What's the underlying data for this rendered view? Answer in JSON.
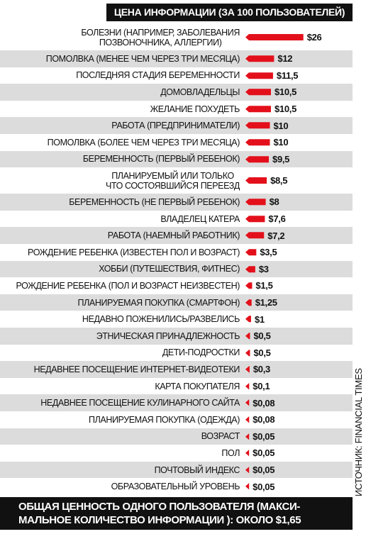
{
  "chart_data": {
    "type": "bar",
    "title": "ЦЕНА ИНФОРМАЦИИ (ЗА 100 ПОЛЬЗОВАТЕЛЕЙ)",
    "categories": [
      "БОЛЕЗНИ (НАПРИМЕР, ЗАБОЛЕВАНИЯ\nПОЗВОНОЧНИКА, АЛЛЕРГИИ)",
      "ПОМОЛВКА (МЕНЕЕ ЧЕМ ЧЕРЕЗ ТРИ МЕСЯЦА)",
      "ПОСЛЕДНЯЯ СТАДИЯ БЕРЕМЕННОСТИ",
      "ДОМОВЛАДЕЛЬЦЫ",
      "ЖЕЛАНИЕ ПОХУДЕТЬ",
      "РАБОТА (ПРЕДПРИНИМАТЕЛИ)",
      "ПОМОЛВКА (БОЛЕЕ ЧЕМ ЧЕРЕЗ ТРИ МЕСЯЦА)",
      "БЕРЕМЕННОСТЬ (ПЕРВЫЙ РЕБЕНОК)",
      "ПЛАНИРУЕМЫЙ ИЛИ ТОЛЬКО\nЧТО СОСТОЯВШИЙСЯ ПЕРЕЕЗД",
      "БЕРЕМЕННОСТЬ (НЕ ПЕРВЫЙ РЕБЕНОК)",
      "ВЛАДЕЛЕЦ КАТЕРА",
      "РАБОТА (НАЕМНЫЙ РАБОТНИК)",
      "РОЖДЕНИЕ РЕБЕНКА (ИЗВЕСТЕН ПОЛ И ВОЗРАСТ)",
      "ХОББИ (ПУТЕШЕСТВИЯ, ФИТНЕС)",
      "РОЖДЕНИЕ РЕБЕНКА (ПОЛ И ВОЗРАСТ НЕИЗВЕСТЕН)",
      "ПЛАНИРУЕМАЯ ПОКУПКА (СМАРТФОН)",
      "НЕДАВНО ПОЖЕНИЛИСЬ/РАЗВЕЛИСЬ",
      "ЭТНИЧЕСКАЯ ПРИНАДЛЕЖНОСТЬ",
      "ДЕТИ-ПОДРОСТКИ",
      "НЕДАВНЕЕ ПОСЕЩЕНИЕ ИНТЕРНЕТ-ВИДЕОТЕКИ",
      "КАРТА ПОКУПАТЕЛЯ",
      "НЕДАВНЕЕ ПОСЕЩЕНИЕ КУЛИНАРНОГО САЙТА",
      "ПЛАНИРУЕМАЯ ПОКУПКА (ОДЕЖДА)",
      "ВОЗРАСТ",
      "ПОЛ",
      "ПОЧТОВЫЙ ИНДЕКС",
      "ОБРАЗОВАТЕЛЬНЫЙ УРОВЕНЬ"
    ],
    "values": [
      26,
      12,
      11.5,
      10.5,
      10.5,
      10,
      10,
      9.5,
      8.5,
      8,
      7.6,
      7.2,
      3.5,
      3,
      1.5,
      1.25,
      1,
      0.5,
      0.5,
      0.3,
      0.1,
      0.08,
      0.08,
      0.05,
      0.05,
      0.05,
      0.05
    ],
    "value_labels": [
      "$26",
      "$12",
      "$11,5",
      "$10,5",
      "$10,5",
      "$10",
      "$10",
      "$9,5",
      "$8,5",
      "$8",
      "$7,6",
      "$7,2",
      "$3,5",
      "$3",
      "$1,5",
      "$1,25",
      "$1",
      "$0,5",
      "$0,5",
      "$0,3",
      "$0,1",
      "$0,08",
      "$0,08",
      "$0,05",
      "$0,05",
      "$0,05",
      "$0,05"
    ],
    "color": "#e3101b",
    "footer": "ОБЩАЯ ЦЕННОСТЬ ОДНОГО ПОЛЬЗОВАТЕЛЯ (МАКСИ-\nМАЛЬНОЕ КОЛИЧЕСТВО ИНФОРМАЦИИ ): ОКОЛО $1,65",
    "source": "ИСТОЧНИК: FINANCIAL TIMES"
  }
}
